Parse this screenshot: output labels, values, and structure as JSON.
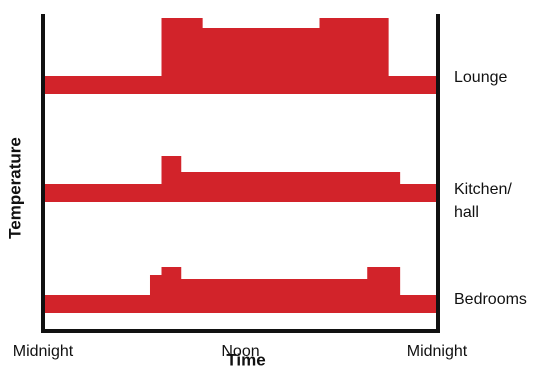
{
  "chart_data": {
    "type": "area",
    "title": "",
    "xlabel": "Time",
    "ylabel": "Temperature",
    "x_unit": "hours",
    "xlim": [
      0,
      24
    ],
    "x_ticks": [
      {
        "x": 0,
        "label": "Midnight"
      },
      {
        "x": 12,
        "label": "Noon"
      },
      {
        "x": 24,
        "label": "Midnight"
      }
    ],
    "grid": false,
    "color": "#d2232a",
    "series": [
      {
        "name": "Lounge",
        "points": [
          [
            0,
            0
          ],
          [
            7.2,
            0
          ],
          [
            7.2,
            2.9
          ],
          [
            9.7,
            2.9
          ],
          [
            9.7,
            2.4
          ],
          [
            16.8,
            2.4
          ],
          [
            16.8,
            2.9
          ],
          [
            21.0,
            2.9
          ],
          [
            21.0,
            0
          ],
          [
            24,
            0
          ]
        ]
      },
      {
        "name": "Kitchen/ hall",
        "points": [
          [
            0,
            0
          ],
          [
            7.2,
            0
          ],
          [
            7.2,
            1.4
          ],
          [
            8.4,
            1.4
          ],
          [
            8.4,
            0.6
          ],
          [
            21.7,
            0.6
          ],
          [
            21.7,
            0
          ],
          [
            24,
            0
          ]
        ]
      },
      {
        "name": "Bedrooms",
        "points": [
          [
            0,
            0
          ],
          [
            6.5,
            0
          ],
          [
            6.5,
            1.0
          ],
          [
            7.2,
            1.0
          ],
          [
            7.2,
            1.4
          ],
          [
            8.4,
            1.4
          ],
          [
            8.4,
            0.8
          ],
          [
            19.7,
            0.8
          ],
          [
            19.7,
            1.4
          ],
          [
            21.7,
            1.4
          ],
          [
            21.7,
            0
          ],
          [
            24,
            0
          ]
        ]
      }
    ]
  }
}
